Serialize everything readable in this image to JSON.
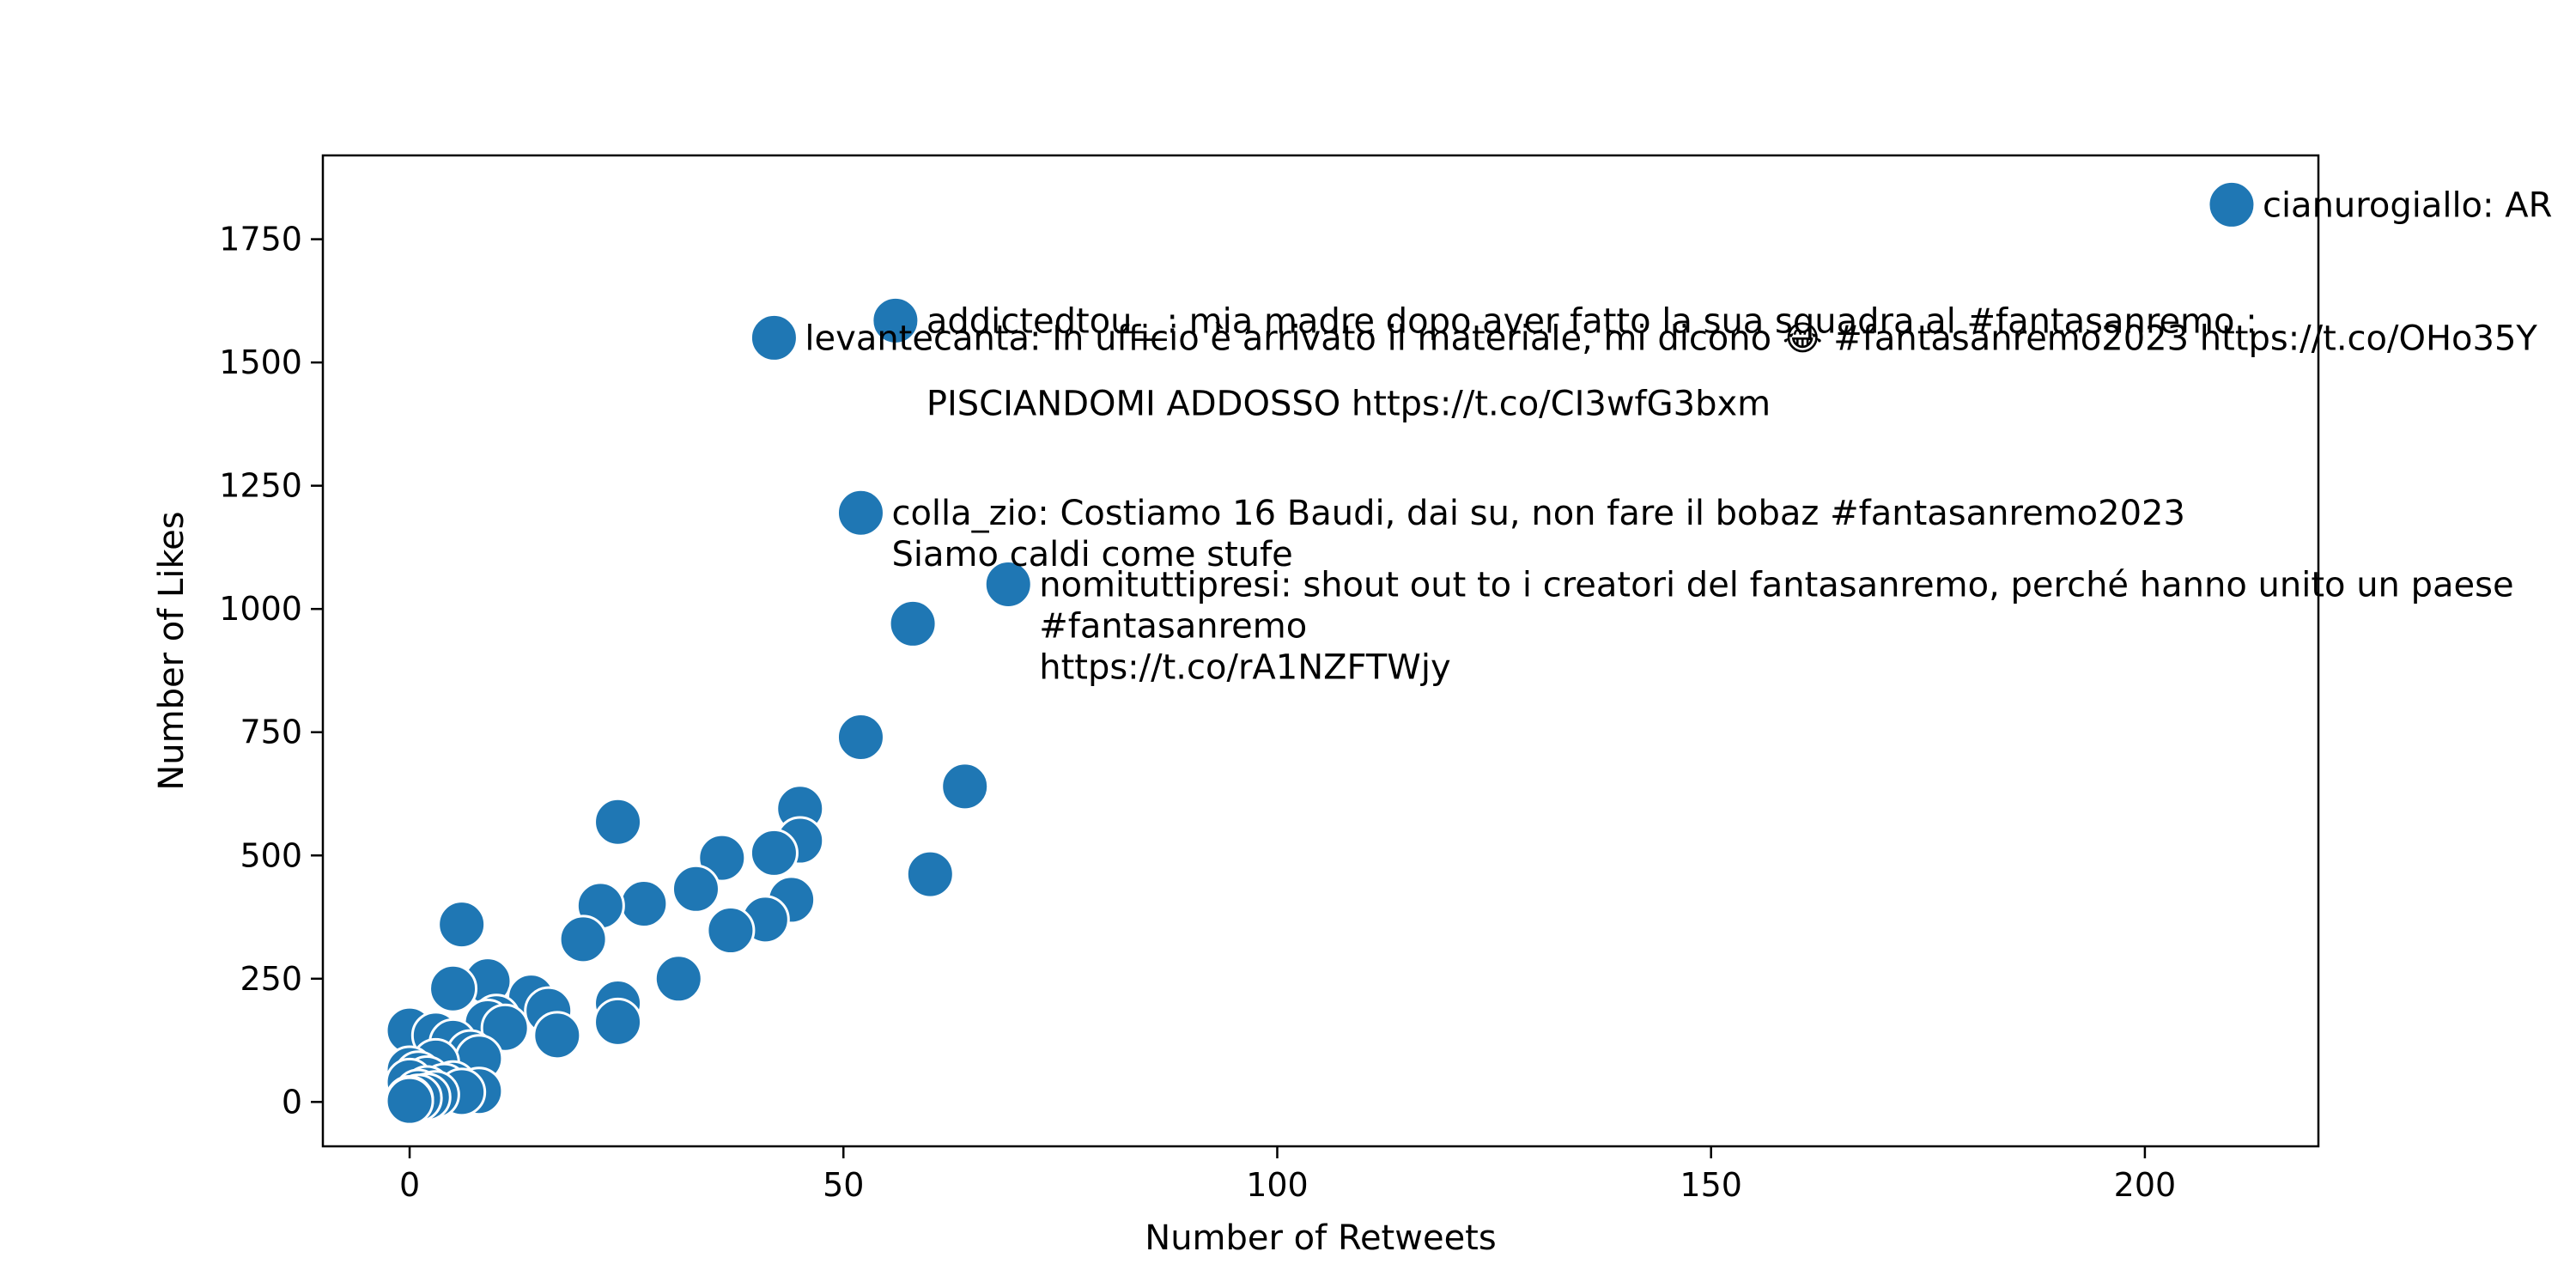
{
  "chart_data": {
    "type": "scatter",
    "xlabel": "Number of Retweets",
    "ylabel": "Number of Likes",
    "xlim": [
      -10,
      220
    ],
    "ylim": [
      -90,
      1920
    ],
    "xticks": [
      0,
      50,
      100,
      150,
      200
    ],
    "yticks": [
      0,
      250,
      500,
      750,
      1000,
      1250,
      1500,
      1750
    ],
    "grid": false,
    "marker_color": "#1f77b4",
    "marker_edge_color": "#ffffff",
    "points": [
      {
        "x": 210,
        "y": 1820
      },
      {
        "x": 56,
        "y": 1585
      },
      {
        "x": 42,
        "y": 1550
      },
      {
        "x": 52,
        "y": 1195
      },
      {
        "x": 69,
        "y": 1050
      },
      {
        "x": 58,
        "y": 970
      },
      {
        "x": 52,
        "y": 740
      },
      {
        "x": 64,
        "y": 640
      },
      {
        "x": 45,
        "y": 595
      },
      {
        "x": 24,
        "y": 568
      },
      {
        "x": 45,
        "y": 530
      },
      {
        "x": 42,
        "y": 505
      },
      {
        "x": 36,
        "y": 495
      },
      {
        "x": 60,
        "y": 462
      },
      {
        "x": 33,
        "y": 432
      },
      {
        "x": 44,
        "y": 410
      },
      {
        "x": 27,
        "y": 402
      },
      {
        "x": 22,
        "y": 398
      },
      {
        "x": 41,
        "y": 370
      },
      {
        "x": 6,
        "y": 360
      },
      {
        "x": 37,
        "y": 348
      },
      {
        "x": 20,
        "y": 330
      },
      {
        "x": 31,
        "y": 250
      },
      {
        "x": 9,
        "y": 245
      },
      {
        "x": 5,
        "y": 230
      },
      {
        "x": 14,
        "y": 212
      },
      {
        "x": 24,
        "y": 200
      },
      {
        "x": 16,
        "y": 185
      },
      {
        "x": 10,
        "y": 170
      },
      {
        "x": 24,
        "y": 162
      },
      {
        "x": 9,
        "y": 160
      },
      {
        "x": 11,
        "y": 150
      },
      {
        "x": 0,
        "y": 145
      },
      {
        "x": 17,
        "y": 135
      },
      {
        "x": 3,
        "y": 135
      },
      {
        "x": 5,
        "y": 120
      },
      {
        "x": 7,
        "y": 98
      },
      {
        "x": 8,
        "y": 88
      },
      {
        "x": 3,
        "y": 80
      },
      {
        "x": 0,
        "y": 65
      },
      {
        "x": 1,
        "y": 55
      },
      {
        "x": 2,
        "y": 45
      },
      {
        "x": 0,
        "y": 40
      },
      {
        "x": 5,
        "y": 35
      },
      {
        "x": 4,
        "y": 30
      },
      {
        "x": 2,
        "y": 25
      },
      {
        "x": 8,
        "y": 22
      },
      {
        "x": 6,
        "y": 20
      },
      {
        "x": 1,
        "y": 18
      },
      {
        "x": 3,
        "y": 15
      },
      {
        "x": 2,
        "y": 10
      },
      {
        "x": 1,
        "y": 8
      },
      {
        "x": 0,
        "y": 5
      },
      {
        "x": 0,
        "y": 2
      }
    ],
    "annotations": [
      {
        "x": 210,
        "y": 1820,
        "lines": [
          "cianurogiallo: AR"
        ]
      },
      {
        "x": 56,
        "y": 1585,
        "lines": [
          "addictedtou__: mia madre dopo aver fatto la sua squadra al #fantasanremo :",
          "",
          "PISCIANDOMI ADDOSSO https://t.co/CI3wfG3bxm"
        ]
      },
      {
        "x": 42,
        "y": 1550,
        "lines": [
          "levantecanta: In ufficio è arrivato il materiale, mi dicono 😂 #fantasanremo2023 https://t.co/OHo35Y"
        ]
      },
      {
        "x": 52,
        "y": 1195,
        "lines": [
          "colla_zio: Costiamo 16 Baudi, dai su, non fare il bobaz #fantasanremo2023",
          "Siamo caldi come stufe"
        ]
      },
      {
        "x": 69,
        "y": 1050,
        "lines": [
          "nomituttipresi: shout out to i creatori del fantasanremo, perché hanno unito un paese",
          "#fantasanremo",
          "https://t.co/rA1NZFTWjy"
        ]
      }
    ]
  }
}
